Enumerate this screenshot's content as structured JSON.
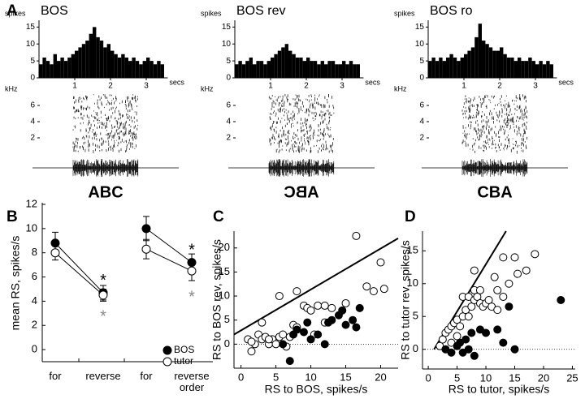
{
  "panel_labels": [
    "A",
    "B",
    "C",
    "D"
  ],
  "chart_data": [
    {
      "type": "histogram",
      "title": "BOS",
      "ylabel": "spikes",
      "xlabel": "secs",
      "bins": [
        0,
        0.1,
        0.2,
        0.3,
        0.4,
        0.5,
        0.6,
        0.7,
        0.8,
        0.9,
        1,
        1.1,
        1.2,
        1.3,
        1.4,
        1.5,
        1.6,
        1.7,
        1.8,
        1.9,
        2,
        2.1,
        2.2,
        2.3,
        2.4,
        2.5,
        2.6,
        2.7,
        2.8,
        2.9,
        3,
        3.1,
        3.2,
        3.3,
        3.4,
        3.5
      ],
      "counts": [
        4,
        6,
        5,
        4,
        7,
        5,
        6,
        5,
        6,
        7,
        8,
        9,
        10,
        11,
        13,
        15,
        12,
        11,
        9,
        10,
        8,
        7,
        6,
        7,
        6,
        5,
        6,
        5,
        4,
        5,
        6,
        5,
        4,
        5,
        4
      ],
      "color": "#000000",
      "xlim": [
        0,
        3.6
      ],
      "xticks": [
        1,
        2,
        3
      ],
      "ylim": [
        0,
        17
      ],
      "yticks": [
        0,
        5,
        10,
        15
      ],
      "spectrogram_ylabel": "kHz",
      "spectrogram_ylim": [
        0,
        8
      ],
      "spectrogram_yticks": [
        2,
        4,
        6
      ],
      "stimulus_label": "ABC",
      "mirrored": false
    },
    {
      "type": "histogram",
      "title": "BOS rev",
      "ylabel": "spikes",
      "xlabel": "secs",
      "bins": [
        0,
        0.1,
        0.2,
        0.3,
        0.4,
        0.5,
        0.6,
        0.7,
        0.8,
        0.9,
        1,
        1.1,
        1.2,
        1.3,
        1.4,
        1.5,
        1.6,
        1.7,
        1.8,
        1.9,
        2,
        2.1,
        2.2,
        2.3,
        2.4,
        2.5,
        2.6,
        2.7,
        2.8,
        2.9,
        3,
        3.1,
        3.2,
        3.3,
        3.4,
        3.5
      ],
      "counts": [
        4,
        5,
        4,
        5,
        6,
        4,
        5,
        5,
        4,
        5,
        6,
        7,
        8,
        9,
        10,
        8,
        7,
        6,
        6,
        5,
        6,
        5,
        5,
        4,
        5,
        4,
        5,
        5,
        4,
        4,
        5,
        4,
        5,
        4,
        4
      ],
      "color": "#000000",
      "xlim": [
        0,
        3.6
      ],
      "xticks": [
        1,
        2,
        3
      ],
      "ylim": [
        0,
        17
      ],
      "yticks": [
        0,
        5,
        10,
        15
      ],
      "spectrogram_ylabel": "kHz",
      "spectrogram_ylim": [
        0,
        8
      ],
      "spectrogram_yticks": [
        2,
        4,
        6
      ],
      "stimulus_label": "ABC",
      "mirrored": true
    },
    {
      "type": "histogram",
      "title": "BOS ro",
      "ylabel": "spikes",
      "xlabel": "secs",
      "bins": [
        0,
        0.1,
        0.2,
        0.3,
        0.4,
        0.5,
        0.6,
        0.7,
        0.8,
        0.9,
        1,
        1.1,
        1.2,
        1.3,
        1.4,
        1.5,
        1.6,
        1.7,
        1.8,
        1.9,
        2,
        2.1,
        2.2,
        2.3,
        2.4,
        2.5,
        2.6,
        2.7,
        2.8,
        2.9,
        3,
        3.1,
        3.2,
        3.3,
        3.4,
        3.5
      ],
      "counts": [
        5,
        6,
        5,
        6,
        5,
        6,
        7,
        6,
        5,
        6,
        7,
        8,
        9,
        12,
        16,
        11,
        10,
        9,
        8,
        8,
        9,
        7,
        6,
        6,
        5,
        6,
        5,
        5,
        6,
        5,
        4,
        5,
        4,
        5,
        4
      ],
      "color": "#000000",
      "xlim": [
        0,
        3.6
      ],
      "xticks": [
        1,
        2,
        3
      ],
      "ylim": [
        0,
        17
      ],
      "yticks": [
        0,
        5,
        10,
        15
      ],
      "spectrogram_ylabel": "kHz",
      "spectrogram_ylim": [
        0,
        8
      ],
      "spectrogram_yticks": [
        2,
        4,
        6
      ],
      "stimulus_label": "CBA",
      "mirrored": false
    },
    {
      "type": "errorline",
      "ylabel": "mean RS, spikes/s",
      "categories": [
        "for",
        "reverse",
        "for",
        "reverse order"
      ],
      "ylim": [
        -1,
        12
      ],
      "yticks": [
        0,
        2,
        4,
        6,
        8,
        10,
        12
      ],
      "series": [
        {
          "name": "BOS",
          "color": "#000000",
          "marker": "filled",
          "values": [
            8.8,
            4.7,
            10.0,
            7.2
          ],
          "errors": [
            0.9,
            0.6,
            1.0,
            0.7
          ]
        },
        {
          "name": "tutor",
          "color": "#000000",
          "marker": "open",
          "values": [
            8.0,
            4.5,
            8.3,
            6.5
          ],
          "errors": [
            0.6,
            0.5,
            0.8,
            0.8
          ]
        }
      ],
      "annotations": [
        {
          "text": "*",
          "category": 1,
          "value": 6.0,
          "color": "#000000"
        },
        {
          "text": "*",
          "category": 1,
          "value": 3.0,
          "color": "#888888"
        },
        {
          "text": "*",
          "category": 3,
          "value": 8.5,
          "color": "#000000"
        },
        {
          "text": "*",
          "category": 3,
          "value": 4.6,
          "color": "#888888"
        }
      ],
      "legend": "lower right"
    },
    {
      "type": "scatter",
      "xlabel": "RS to BOS, spikes/s",
      "ylabel": "RS to BOS rev, spikes/s",
      "xlim": [
        -1,
        22.5
      ],
      "xticks": [
        0,
        5,
        10,
        15,
        20
      ],
      "ylim": [
        -5,
        23.5
      ],
      "yticks": [
        0,
        5,
        10,
        15,
        20
      ],
      "zero_line": true,
      "fit_line": {
        "x": [
          -1,
          22.5
        ],
        "y": [
          2,
          22
        ]
      },
      "series": [
        {
          "color": "#000000",
          "marker": "open",
          "x": [
            1,
            1.5,
            2,
            2.5,
            3,
            3,
            3.5,
            4,
            4.5,
            5,
            5.5,
            5.5,
            6,
            7,
            7.5,
            8,
            8,
            9,
            9.5,
            10,
            11,
            12,
            12,
            13,
            15,
            16.5,
            18,
            19,
            20,
            20.5,
            1.5,
            4,
            6.5,
            10.5
          ],
          "y": [
            1,
            -1.5,
            0,
            2,
            4.5,
            1,
            1.5,
            0,
            1,
            0,
            10,
            1.5,
            2,
            1.5,
            4,
            3.5,
            11,
            8,
            7.5,
            7,
            8,
            8,
            4.5,
            7.5,
            8.5,
            22.5,
            12,
            11,
            17,
            11.5,
            0.5,
            1,
            -0.5,
            2
          ]
        },
        {
          "color": "#000000",
          "marker": "filled",
          "x": [
            6,
            7,
            7.5,
            8,
            9,
            9.5,
            10,
            11,
            12,
            12.5,
            13,
            14,
            14.5,
            15,
            16,
            16.5,
            17
          ],
          "y": [
            0,
            -3.5,
            2,
            3,
            2.5,
            4.5,
            1,
            2,
            0,
            4.5,
            5,
            6,
            7,
            4,
            5,
            3.5,
            7.5
          ]
        }
      ]
    },
    {
      "type": "scatter",
      "xlabel": "RS to tutor, spikes/s",
      "ylabel": "RS to tutor rev, spikes/s",
      "xlim": [
        -1,
        25.5
      ],
      "xticks": [
        0,
        5,
        10,
        15,
        20,
        25
      ],
      "ylim": [
        -3,
        18
      ],
      "yticks": [
        0,
        5,
        10,
        15
      ],
      "zero_line": true,
      "fit_line": {
        "x": [
          1,
          13.5
        ],
        "y": [
          0,
          18
        ]
      },
      "series": [
        {
          "color": "#000000",
          "marker": "open",
          "x": [
            2,
            2.5,
            3,
            3.5,
            4,
            4,
            4.5,
            5,
            5,
            5.5,
            6,
            6,
            6.5,
            7,
            7,
            7.5,
            8,
            8,
            8.5,
            9,
            9.5,
            10,
            10.5,
            11,
            11.5,
            12,
            12,
            13,
            13,
            14,
            15,
            15.5,
            17,
            18.5,
            8,
            9
          ],
          "y": [
            0.5,
            1.5,
            2.5,
            3,
            3.5,
            1,
            4,
            4.5,
            2,
            3.5,
            5,
            8,
            6,
            8,
            5,
            6.5,
            9,
            7.5,
            8,
            7,
            6.5,
            7,
            7.5,
            6.5,
            11,
            9,
            6,
            14,
            8,
            10,
            14,
            11.5,
            12,
            14.5,
            12,
            9
          ]
        },
        {
          "color": "#000000",
          "marker": "filled",
          "x": [
            3,
            4,
            5,
            5.5,
            6,
            6.5,
            7,
            7.5,
            8,
            9,
            10,
            12,
            13,
            14,
            15,
            23
          ],
          "y": [
            0,
            -0.5,
            0.5,
            1,
            -0.5,
            1.5,
            0,
            2.5,
            -1,
            3,
            2.5,
            3,
            1,
            6.5,
            0,
            7.5
          ]
        }
      ]
    }
  ]
}
